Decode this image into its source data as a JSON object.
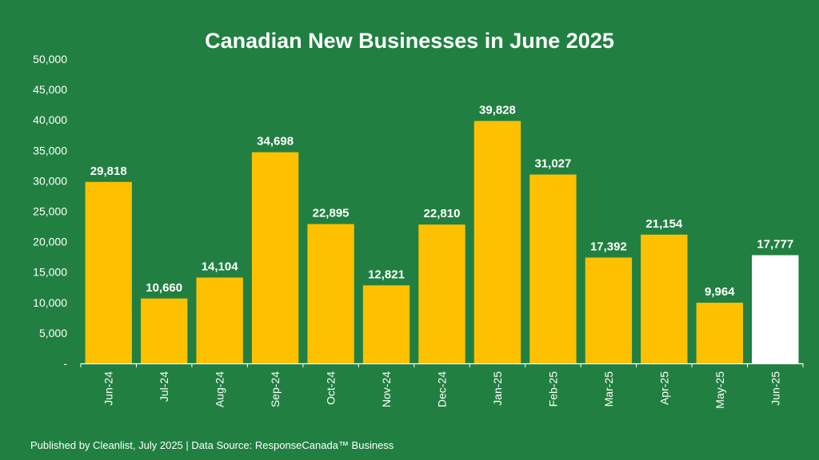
{
  "title": "Canadian New Businesses in June 2025",
  "footer": "Published by Cleanlist, July 2025 | Data Source: ResponseCanada™ Business",
  "colors": {
    "background": "#218041",
    "bar": "#FFC000",
    "highlight_bar": "#FFFFFF",
    "text": "#FFFFFF"
  },
  "chart_data": {
    "type": "bar",
    "title": "Canadian New Businesses in June 2025",
    "xlabel": "",
    "ylabel": "",
    "categories": [
      "Jun-24",
      "Jul-24",
      "Aug-24",
      "Sep-24",
      "Oct-24",
      "Nov-24",
      "Dec-24",
      "Jan-25",
      "Feb-25",
      "Mar-25",
      "Apr-25",
      "May-25",
      "Jun-25"
    ],
    "values": [
      29818,
      10660,
      14104,
      34698,
      22895,
      12821,
      22810,
      39828,
      31027,
      17392,
      21154,
      9964,
      17777
    ],
    "value_labels": [
      "29,818",
      "10,660",
      "14,104",
      "34,698",
      "22,895",
      "12,821",
      "22,810",
      "39,828",
      "31,027",
      "17,392",
      "21,154",
      "9,964",
      "17,777"
    ],
    "highlight_index": 12,
    "ylim": [
      0,
      50000
    ],
    "yticks": [
      0,
      5000,
      10000,
      15000,
      20000,
      25000,
      30000,
      35000,
      40000,
      45000,
      50000
    ],
    "ytick_labels": [
      "-",
      "5,000",
      "10,000",
      "15,000",
      "20,000",
      "25,000",
      "30,000",
      "35,000",
      "40,000",
      "45,000",
      "50,000"
    ],
    "grid": false,
    "legend": "none"
  }
}
